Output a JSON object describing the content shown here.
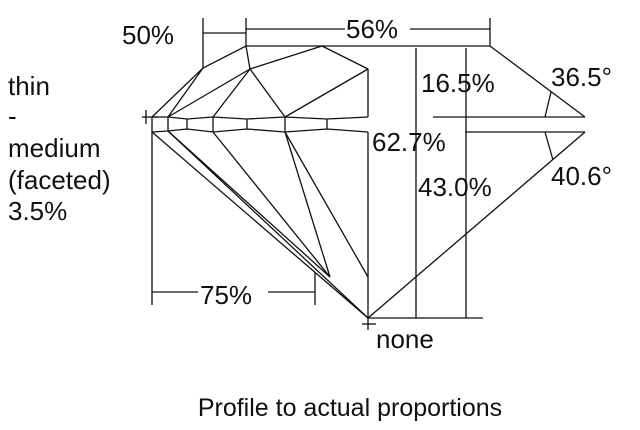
{
  "girdle_label": {
    "lines": [
      "thin",
      "-",
      "medium",
      "(faceted)",
      "3.5%"
    ]
  },
  "dimensions": {
    "star_length": "50%",
    "table": "56%",
    "crown_height": "16.5%",
    "crown_angle": "36.5°",
    "total_depth": "62.7%",
    "pavilion_depth": "43.0%",
    "pavilion_angle": "40.6°",
    "lower_half_length": "75%",
    "culet": "none"
  },
  "caption": "Profile to actual proportions"
}
